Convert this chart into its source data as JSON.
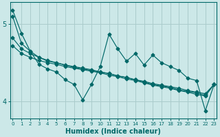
{
  "xlabel": "Humidex (Indice chaleur)",
  "bg_color": "#cce8e8",
  "line_color": "#006868",
  "grid_color": "#aacccc",
  "x_data": [
    0,
    1,
    2,
    3,
    4,
    5,
    6,
    7,
    8,
    9,
    10,
    11,
    12,
    13,
    14,
    15,
    16,
    17,
    18,
    19,
    20,
    21,
    22,
    23
  ],
  "line_wavy": [
    5.18,
    4.88,
    4.65,
    4.48,
    4.42,
    4.38,
    4.28,
    4.22,
    4.02,
    4.22,
    4.45,
    4.87,
    4.68,
    4.52,
    4.62,
    4.47,
    4.6,
    4.5,
    4.45,
    4.4,
    4.3,
    4.27,
    3.88,
    4.22
  ],
  "line_top": [
    5.1,
    4.75,
    4.65,
    4.57,
    4.52,
    4.5,
    4.47,
    4.44,
    4.42,
    4.4,
    4.38,
    4.36,
    4.33,
    4.31,
    4.28,
    4.26,
    4.23,
    4.21,
    4.19,
    4.17,
    4.14,
    4.12,
    4.1,
    4.22
  ],
  "line_mid1": [
    4.82,
    4.68,
    4.62,
    4.57,
    4.53,
    4.5,
    4.47,
    4.45,
    4.43,
    4.41,
    4.38,
    4.36,
    4.33,
    4.31,
    4.28,
    4.25,
    4.22,
    4.2,
    4.18,
    4.15,
    4.13,
    4.11,
    4.08,
    4.22
  ],
  "line_mid2": [
    4.72,
    4.62,
    4.57,
    4.53,
    4.5,
    4.48,
    4.45,
    4.43,
    4.41,
    4.39,
    4.37,
    4.34,
    4.32,
    4.29,
    4.27,
    4.24,
    4.21,
    4.19,
    4.17,
    4.14,
    4.12,
    4.09,
    4.07,
    4.22
  ],
  "ylim": [
    3.78,
    5.28
  ],
  "ytick_positions": [
    4.0,
    5.0
  ],
  "ytick_labels": [
    "4",
    "5"
  ],
  "xlim": [
    -0.3,
    23.3
  ]
}
